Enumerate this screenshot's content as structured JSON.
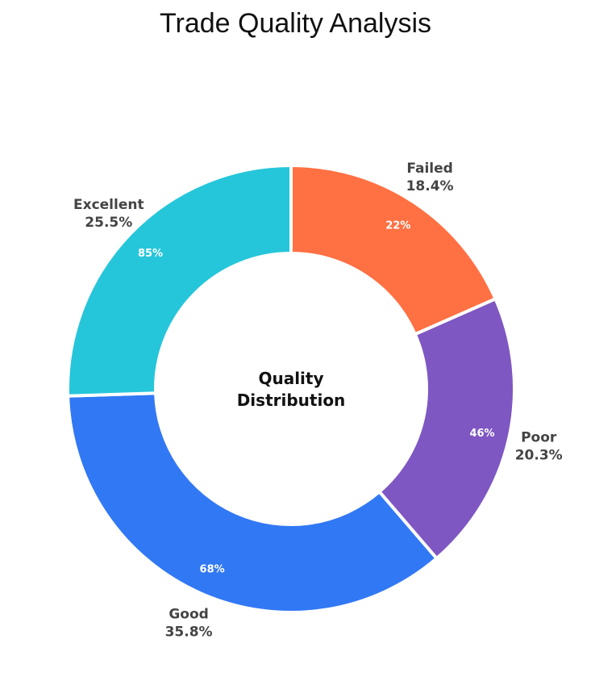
{
  "chart_data": {
    "type": "pie",
    "title": "Trade Quality Analysis",
    "center_label": [
      "Quality",
      "Distribution"
    ],
    "slices": [
      {
        "name": "Failed",
        "share_label": "18.4%",
        "value": 18.4,
        "inner_label": "22%",
        "color": "#FF7043"
      },
      {
        "name": "Poor",
        "share_label": "20.3%",
        "value": 20.3,
        "inner_label": "46%",
        "color": "#7E57C2"
      },
      {
        "name": "Good",
        "share_label": "35.8%",
        "value": 35.8,
        "inner_label": "68%",
        "color": "#3178F4"
      },
      {
        "name": "Excellent",
        "share_label": "25.5%",
        "value": 25.5,
        "inner_label": "85%",
        "color": "#26C6DA"
      }
    ]
  }
}
